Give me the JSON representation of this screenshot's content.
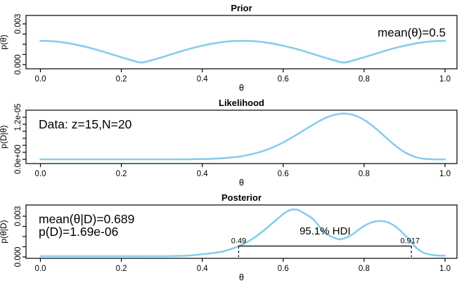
{
  "figure": {
    "background": "#ffffff",
    "curve_color": "#87CEEB",
    "axis_color": "#000000"
  },
  "chart_data": [
    {
      "type": "line",
      "title": "Prior",
      "xlabel": "θ",
      "ylabel": "p(θ)",
      "annotation": "mean(θ)=0.5",
      "xlim": [
        0,
        1
      ],
      "ylim": [
        0,
        0.0031
      ],
      "xtick_values": [
        0,
        0.2,
        0.4,
        0.6,
        0.8,
        1
      ],
      "xtick_labels": [
        "0.0",
        "0.2",
        "0.4",
        "0.6",
        "0.8",
        "1.0"
      ],
      "ytick_values": [
        0,
        0.003
      ],
      "ytick_labels": [
        "0.000",
        "0.003"
      ],
      "x": [
        0,
        0.025,
        0.05,
        0.075,
        0.1,
        0.125,
        0.15,
        0.175,
        0.2,
        0.225,
        0.25,
        0.275,
        0.3,
        0.325,
        0.35,
        0.375,
        0.4,
        0.425,
        0.45,
        0.475,
        0.5,
        0.525,
        0.55,
        0.575,
        0.6,
        0.625,
        0.65,
        0.675,
        0.7,
        0.725,
        0.75,
        0.775,
        0.8,
        0.825,
        0.85,
        0.875,
        0.9,
        0.925,
        0.95,
        0.975,
        1
      ],
      "y": [
        0.00175,
        0.00173,
        0.00166,
        0.00154,
        0.00139,
        0.00121,
        0.001,
        0.00077,
        0.00054,
        0.00032,
        0.00015,
        0.00032,
        0.00054,
        0.00077,
        0.001,
        0.00121,
        0.00139,
        0.00154,
        0.00166,
        0.00173,
        0.00175,
        0.00173,
        0.00166,
        0.00154,
        0.00139,
        0.00121,
        0.001,
        0.00077,
        0.00054,
        0.00032,
        0.00015,
        0.00032,
        0.00054,
        0.00077,
        0.001,
        0.00121,
        0.00139,
        0.00154,
        0.00166,
        0.00173,
        0.00175
      ]
    },
    {
      "type": "line",
      "title": "Likelihood",
      "xlabel": "θ",
      "ylabel": "p(D|θ)",
      "annotation": "Data: z=15,N=20",
      "xlim": [
        0,
        1
      ],
      "ylim": [
        0,
        1.32e-05
      ],
      "xtick_values": [
        0,
        0.2,
        0.4,
        0.6,
        0.8,
        1
      ],
      "xtick_labels": [
        "0.0",
        "0.2",
        "0.4",
        "0.6",
        "0.8",
        "1.0"
      ],
      "ytick_values": [
        0,
        1.2e-05
      ],
      "ytick_labels": [
        "0.0e+00",
        "1.2e-05"
      ],
      "x": [
        0,
        0.025,
        0.05,
        0.075,
        0.1,
        0.125,
        0.15,
        0.175,
        0.2,
        0.225,
        0.25,
        0.275,
        0.3,
        0.325,
        0.35,
        0.375,
        0.4,
        0.425,
        0.45,
        0.475,
        0.5,
        0.525,
        0.55,
        0.575,
        0.6,
        0.625,
        0.65,
        0.675,
        0.7,
        0.725,
        0.75,
        0.775,
        0.8,
        0.825,
        0.85,
        0.875,
        0.9,
        0.925,
        0.95,
        0.975,
        1
      ],
      "y": [
        0,
        0,
        0,
        0,
        0,
        0,
        0,
        0,
        0,
        0,
        0,
        0,
        2.4e-09,
        6.7e-09,
        1.7e-08,
        3.9e-08,
        8.4e-08,
        1.67e-07,
        3.17e-07,
        5.6e-07,
        9.5e-07,
        1.53e-06,
        2.35e-06,
        3.44e-06,
        4.81e-06,
        6.43e-06,
        8.2e-06,
        9.96e-06,
        1.154e-05,
        1.263e-05,
        1.305e-05,
        1.261e-05,
        1.126e-05,
        9.16e-06,
        6.63e-06,
        4.12e-06,
        2.06e-06,
        7.4e-07,
        1.45e-07,
        6.7e-09,
        0
      ]
    },
    {
      "type": "line",
      "title": "Posterior",
      "xlabel": "θ",
      "ylabel": "p(θ|D)",
      "annotations": [
        "mean(θ|D)=0.689",
        "p(D)=1.69e-06"
      ],
      "xlim": [
        0,
        1
      ],
      "ylim": [
        0,
        0.0036
      ],
      "xtick_values": [
        0,
        0.2,
        0.4,
        0.6,
        0.8,
        1
      ],
      "xtick_labels": [
        "0.0",
        "0.2",
        "0.4",
        "0.6",
        "0.8",
        "1.0"
      ],
      "ytick_values": [
        0,
        0.003
      ],
      "ytick_labels": [
        "0.000",
        "0.003"
      ],
      "x": [
        0,
        0.1,
        0.2,
        0.3,
        0.325,
        0.35,
        0.375,
        0.4,
        0.425,
        0.45,
        0.475,
        0.49,
        0.5,
        0.525,
        0.55,
        0.575,
        0.6,
        0.6125,
        0.625,
        0.6375,
        0.65,
        0.675,
        0.7,
        0.7125,
        0.725,
        0.7375,
        0.75,
        0.7625,
        0.775,
        0.7875,
        0.8,
        0.8125,
        0.825,
        0.8375,
        0.85,
        0.8625,
        0.875,
        0.8875,
        0.9,
        0.9125,
        0.925,
        0.9375,
        0.95,
        0.975,
        1
      ],
      "y": [
        5e-05,
        5e-05,
        5e-05,
        5e-05,
        6e-05,
        8e-05,
        0.00012,
        0.0002,
        0.00028,
        0.0004,
        0.00062,
        0.0008,
        0.00092,
        0.00134,
        0.0019,
        0.00252,
        0.00316,
        0.0034,
        0.0035,
        0.00345,
        0.00325,
        0.00275,
        0.00185,
        0.0016,
        0.00143,
        0.0013,
        0.00136,
        0.00152,
        0.00174,
        0.00203,
        0.00228,
        0.00247,
        0.0026,
        0.00265,
        0.00262,
        0.0025,
        0.00229,
        0.002,
        0.00162,
        0.00126,
        0.00079,
        0.00048,
        0.00027,
        0.00012,
        9e-05
      ],
      "hdi": {
        "label": "95.1% HDI",
        "lo": 0.49,
        "hi": 0.917,
        "lo_label": "0.49",
        "hi_label": "0.917",
        "line_height": 0.0008
      }
    }
  ]
}
